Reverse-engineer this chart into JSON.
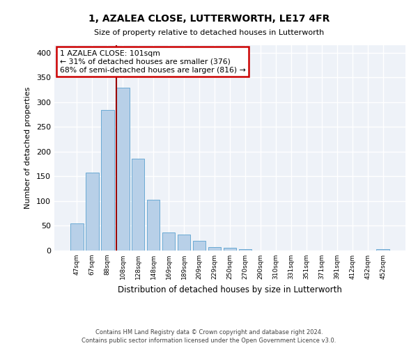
{
  "title": "1, AZALEA CLOSE, LUTTERWORTH, LE17 4FR",
  "subtitle": "Size of property relative to detached houses in Lutterworth",
  "xlabel": "Distribution of detached houses by size in Lutterworth",
  "ylabel": "Number of detached properties",
  "bar_labels": [
    "47sqm",
    "67sqm",
    "88sqm",
    "108sqm",
    "128sqm",
    "148sqm",
    "169sqm",
    "189sqm",
    "209sqm",
    "229sqm",
    "250sqm",
    "270sqm",
    "290sqm",
    "310sqm",
    "331sqm",
    "351sqm",
    "371sqm",
    "391sqm",
    "412sqm",
    "432sqm",
    "452sqm"
  ],
  "bar_values": [
    55,
    157,
    284,
    329,
    185,
    103,
    37,
    32,
    19,
    7,
    5,
    3,
    0,
    0,
    0,
    0,
    0,
    0,
    0,
    0,
    3
  ],
  "bar_color": "#b8d0e8",
  "bar_edge_color": "#6aaad4",
  "vline_color": "#990000",
  "vline_x": 2.575,
  "annotation_title": "1 AZALEA CLOSE: 101sqm",
  "annotation_line1": "← 31% of detached houses are smaller (376)",
  "annotation_line2": "68% of semi-detached houses are larger (816) →",
  "annotation_box_color": "#ffffff",
  "annotation_box_edge": "#cc0000",
  "ylim": [
    0,
    415
  ],
  "yticks": [
    0,
    50,
    100,
    150,
    200,
    250,
    300,
    350,
    400
  ],
  "footnote1": "Contains HM Land Registry data © Crown copyright and database right 2024.",
  "footnote2": "Contains public sector information licensed under the Open Government Licence v3.0.",
  "bg_color": "#eef2f8"
}
